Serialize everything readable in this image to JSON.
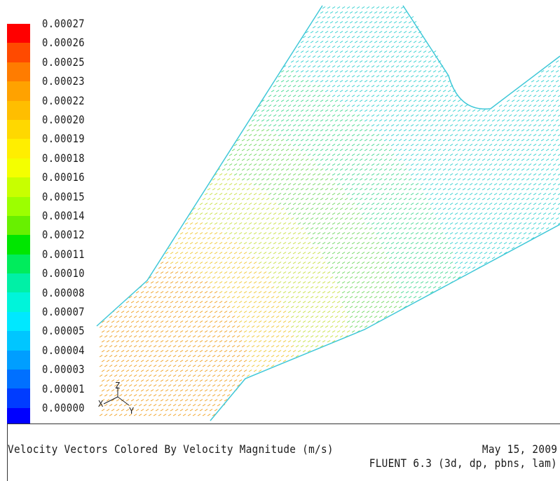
{
  "colorbar": {
    "labels": [
      "0.00027",
      "0.00026",
      "0.00025",
      "0.00023",
      "0.00022",
      "0.00020",
      "0.00019",
      "0.00018",
      "0.00016",
      "0.00015",
      "0.00014",
      "0.00012",
      "0.00011",
      "0.00010",
      "0.00008",
      "0.00007",
      "0.00005",
      "0.00004",
      "0.00003",
      "0.00001",
      "0.00000"
    ],
    "colors": [
      "#ff0000",
      "#ff4a00",
      "#ff7c00",
      "#ffa200",
      "#ffbe00",
      "#ffd800",
      "#ffee00",
      "#f4ff00",
      "#c8ff00",
      "#9cff00",
      "#68f000",
      "#00e600",
      "#00ec5c",
      "#00f0a6",
      "#00f4da",
      "#00e8ff",
      "#00c6ff",
      "#009eff",
      "#0070ff",
      "#003cff",
      "#0000ff"
    ]
  },
  "axes": {
    "z": "Z",
    "x": "X",
    "y": "Y"
  },
  "footer": {
    "title": "Velocity Vectors Colored By Velocity Magnitude (m/s)",
    "date": "May 15, 2009",
    "version": "FLUENT 6.3 (3d, dp, pbns, lam)"
  }
}
